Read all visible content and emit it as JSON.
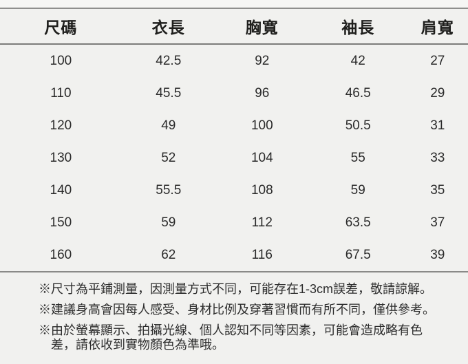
{
  "table": {
    "headers": [
      "尺碼",
      "衣長",
      "胸寬",
      "袖長",
      "肩寬"
    ],
    "rows": [
      [
        "100",
        "42.5",
        "92",
        "42",
        "27"
      ],
      [
        "110",
        "45.5",
        "96",
        "46.5",
        "29"
      ],
      [
        "120",
        "49",
        "100",
        "50.5",
        "31"
      ],
      [
        "130",
        "52",
        "104",
        "55",
        "33"
      ],
      [
        "140",
        "55.5",
        "108",
        "59",
        "35"
      ],
      [
        "150",
        "59",
        "112",
        "63.5",
        "37"
      ],
      [
        "160",
        "62",
        "116",
        "67.5",
        "39"
      ]
    ]
  },
  "notes": [
    {
      "lines": [
        "※尺寸為平鋪測量，因測量方式不同，可能存在1-3cm誤差，敬請諒解。"
      ]
    },
    {
      "lines": [
        "※建議身高會因每人感受、身材比例及穿著習慣而有所不同，僅供參考。"
      ]
    },
    {
      "lines": [
        "※由於螢幕顯示、拍攝光線、個人認知不同等因素，可能會造成略有色",
        "差，請依收到實物顏色為準哦。"
      ]
    }
  ],
  "colors": {
    "background": "#f1f1ef",
    "rule_light": "#8f8f8d",
    "rule_dark": "#7c7c7a",
    "text": "#2a2a2a"
  },
  "chart_data": {
    "type": "table",
    "title": "",
    "columns": [
      "尺碼",
      "衣長",
      "胸寬",
      "袖長",
      "肩寬"
    ],
    "rows": [
      [
        100,
        42.5,
        92,
        42,
        27
      ],
      [
        110,
        45.5,
        96,
        46.5,
        29
      ],
      [
        120,
        49,
        100,
        50.5,
        31
      ],
      [
        130,
        52,
        104,
        55,
        33
      ],
      [
        140,
        55.5,
        108,
        59,
        35
      ],
      [
        150,
        59,
        112,
        63.5,
        37
      ],
      [
        160,
        62,
        116,
        67.5,
        39
      ]
    ],
    "footnotes": [
      "尺寸為平鋪測量，因測量方式不同，可能存在1-3cm誤差，敬請諒解。",
      "建議身高會因每人感受、身材比例及穿著習慣而有所不同，僅供參考。",
      "由於螢幕顯示、拍攝光線、個人認知不同等因素，可能會造成略有色差，請依收到實物顏色為準哦。"
    ]
  }
}
